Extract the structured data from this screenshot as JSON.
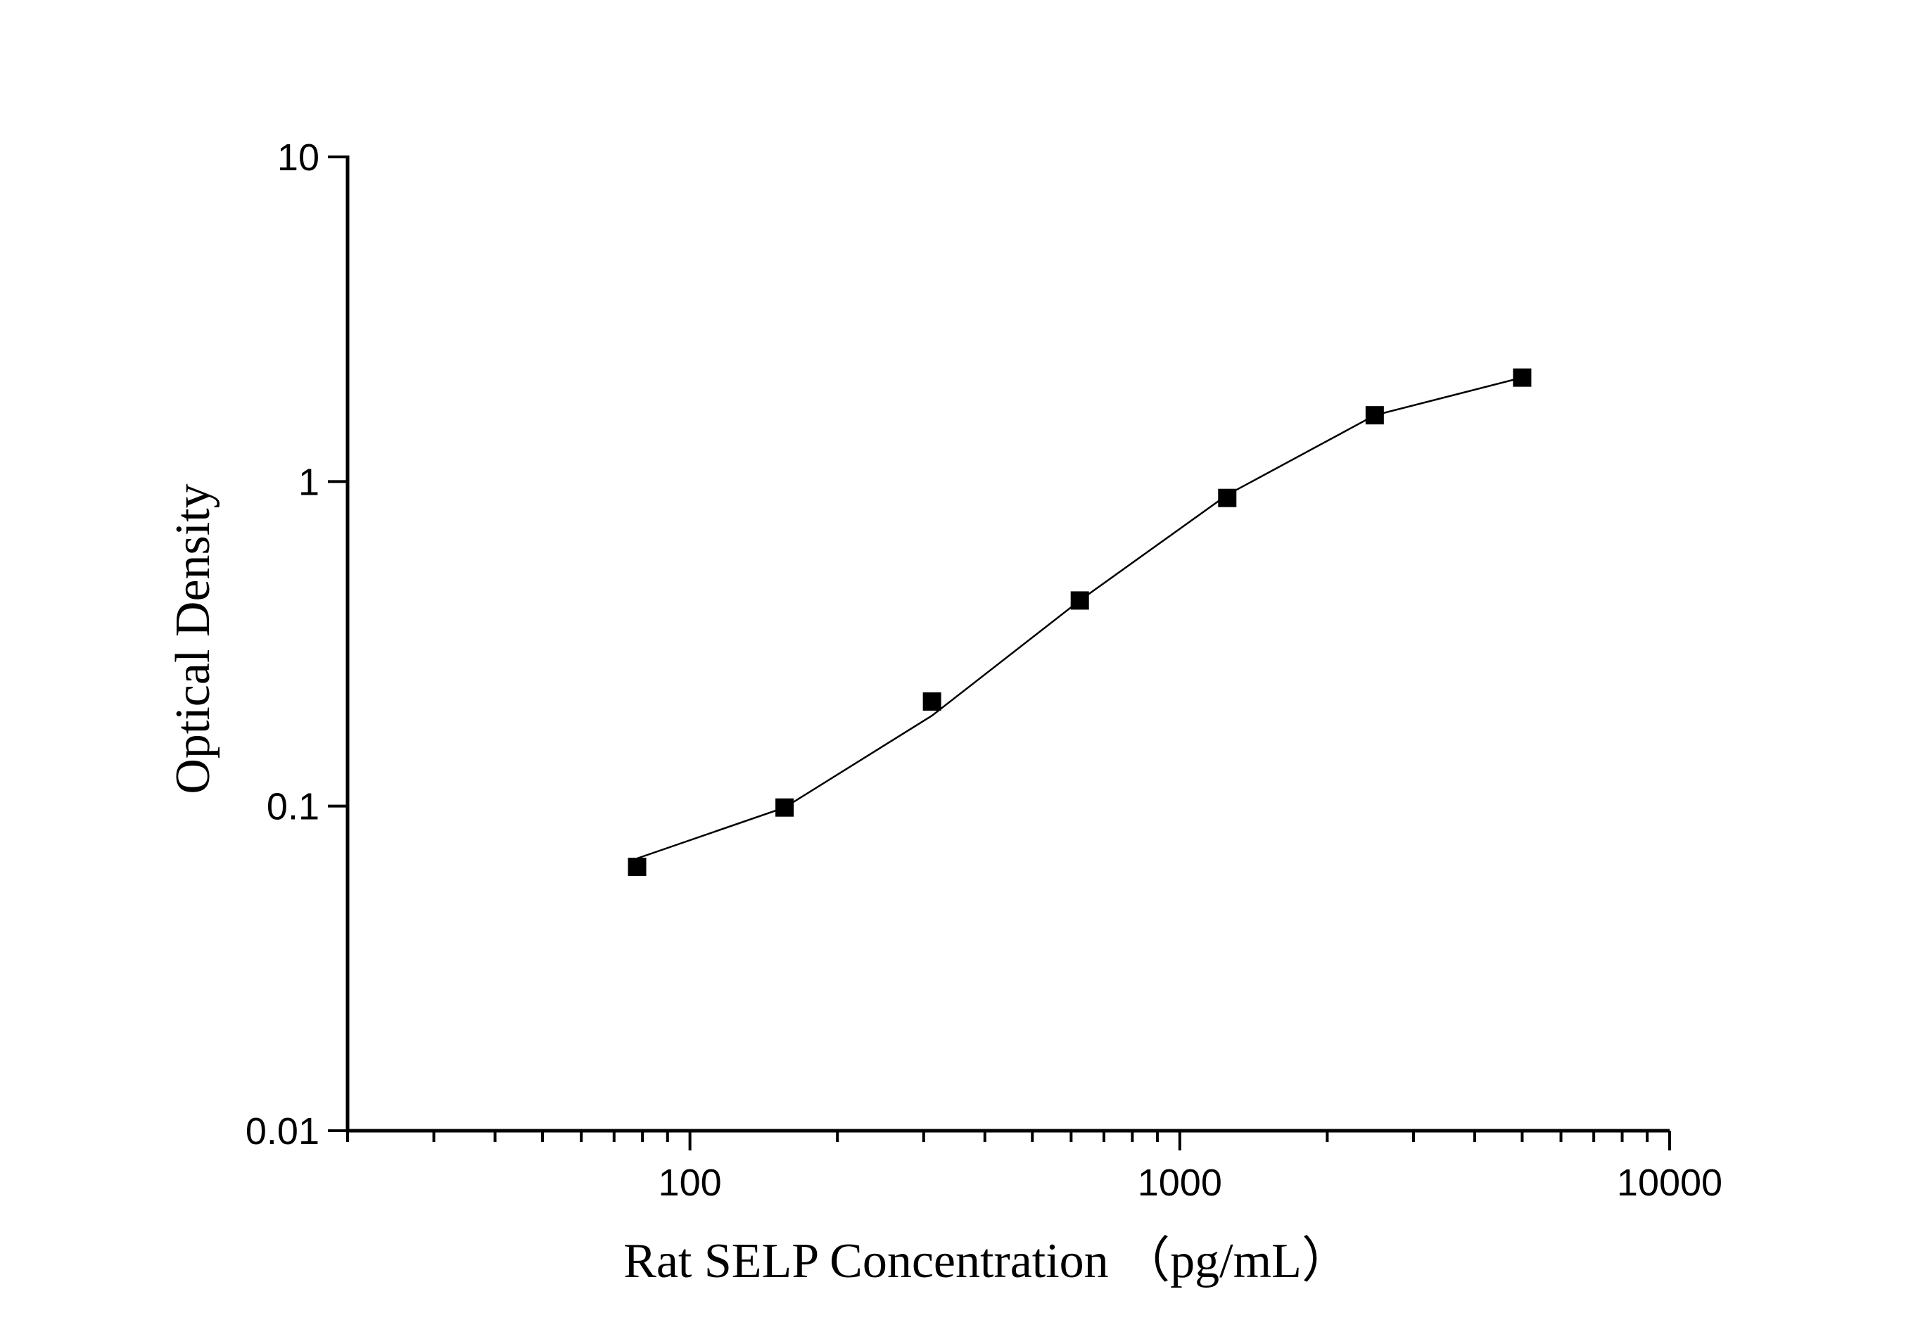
{
  "chart_data": {
    "type": "line",
    "xlabel": "Rat SELP Concentration （pg/mL）",
    "ylabel": "Optical Density",
    "x_scale": "log",
    "y_scale": "log",
    "xlim": [
      20,
      10000
    ],
    "ylim": [
      0.01,
      10
    ],
    "x_ticks": [
      {
        "value": 100,
        "label": "100"
      },
      {
        "value": 1000,
        "label": "1000"
      },
      {
        "value": 10000,
        "label": "10000"
      }
    ],
    "y_ticks": [
      {
        "value": 0.01,
        "label": "0.01"
      },
      {
        "value": 0.1,
        "label": "0.1"
      },
      {
        "value": 1,
        "label": "1"
      },
      {
        "value": 10,
        "label": "10"
      }
    ],
    "grid": false,
    "marker": "square",
    "colors": {
      "line": "#000000",
      "marker": "#000000",
      "axis": "#000000"
    },
    "series": [
      {
        "x": [
          78,
          156,
          312,
          625,
          1250,
          2500,
          5000
        ],
        "y": [
          0.065,
          0.099,
          0.21,
          0.43,
          0.89,
          1.6,
          2.09
        ]
      }
    ],
    "fit_curve": {
      "x": [
        78,
        156,
        312,
        625,
        1250,
        2500,
        5000
      ],
      "y": [
        0.069,
        0.099,
        0.19,
        0.43,
        0.91,
        1.6,
        2.09
      ]
    }
  }
}
